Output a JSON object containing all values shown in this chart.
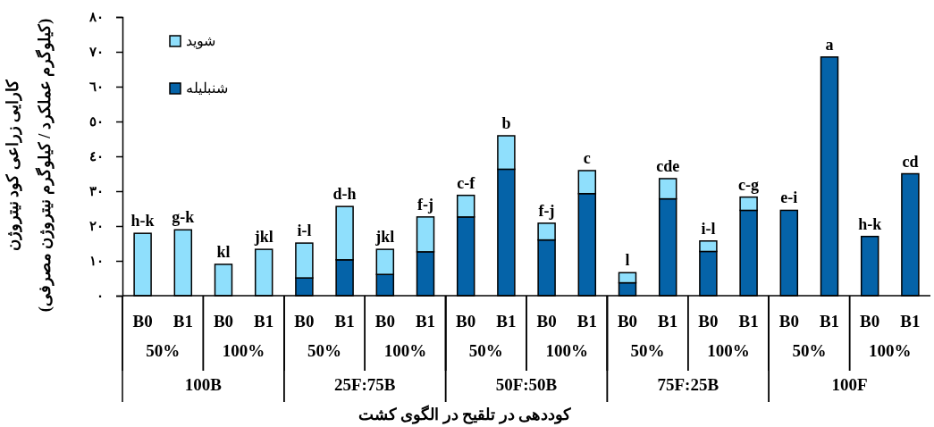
{
  "chart_data": {
    "type": "bar",
    "stacked": true,
    "xlabel": "کوددهی  در تلقیح در الگوی کشت",
    "ylabel": "کارایی زراعی کود نیتروژن\n(کیلوگرم عملکرد / کیلوگرم نیتروژن مصرفی)",
    "categories": [
      "B0",
      "B1",
      "B0",
      "B1",
      "B0",
      "B1",
      "B0",
      "B1",
      "B0",
      "B1",
      "B0",
      "B1",
      "B0",
      "B1",
      "B0",
      "B1",
      "B0",
      "B1",
      "B0",
      "B1"
    ],
    "series": [
      {
        "name": "شنبلیله",
        "color": "#0563a8",
        "values": [
          null,
          null,
          null,
          null,
          5.1,
          10.3,
          6.1,
          12.6,
          22.6,
          36.3,
          16.0,
          29.3,
          3.7,
          27.8,
          12.7,
          24.5,
          24.5,
          68.5,
          17.0,
          35.0
        ]
      },
      {
        "name": "شوید",
        "color": "#8fdffc",
        "values": [
          17.9,
          18.9,
          9.0,
          13.3,
          10.0,
          15.3,
          7.2,
          10.0,
          6.2,
          9.6,
          4.8,
          6.6,
          2.9,
          5.8,
          3.0,
          3.8,
          null,
          null,
          null,
          null
        ]
      }
    ],
    "value_labels": [
      "h-k",
      "g-k",
      "kl",
      "jkl",
      "i-l",
      "d-h",
      "jkl",
      "f-j",
      "c-f",
      "b",
      "f-j",
      "c",
      "l",
      "cde",
      "i-l",
      "c-g",
      "e-i",
      "a",
      "h-k",
      "cd"
    ],
    "annotations": [
      "50%",
      "100%",
      "50%",
      "100%",
      "50%",
      "100%",
      "50%",
      "100%",
      "50%",
      "100%",
      "100B",
      "25F:75B",
      "50F:50B",
      "75F:25B",
      "100F"
    ],
    "ylim": [
      0,
      80
    ],
    "yticks": [
      {
        "value": 0,
        "label": "٠"
      },
      {
        "value": 10,
        "label": "١٠"
      },
      {
        "value": 20,
        "label": "٢٠"
      },
      {
        "value": 30,
        "label": "٣٠"
      },
      {
        "value": 40,
        "label": "٤٠"
      },
      {
        "value": 50,
        "label": "٥٠"
      },
      {
        "value": 60,
        "label": "٦٠"
      },
      {
        "value": 70,
        "label": "٧٠"
      },
      {
        "value": 80,
        "label": "٨٠"
      }
    ],
    "legend": "top left",
    "grid": false
  }
}
